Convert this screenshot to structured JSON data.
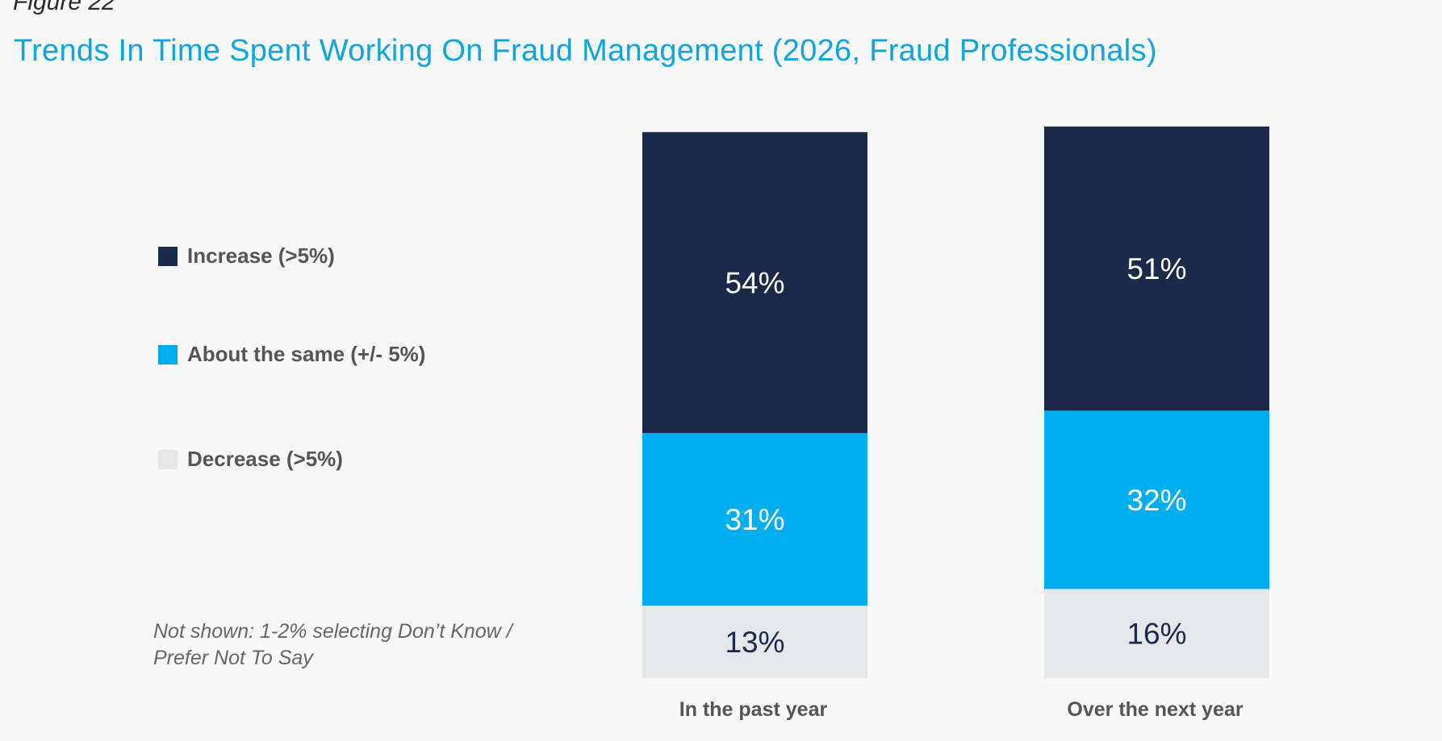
{
  "figure_label": "Figure 22",
  "note": "Not shown: 1-2% selecting Don’t Know / Prefer Not To Say",
  "colors": {
    "increase": "#1c2a4a",
    "same": "#00aeef",
    "decrease": "#e6e7e9",
    "label_light": "#ffffff",
    "label_dark": "#1c2a4a",
    "title": "#0ea5dc"
  },
  "chart_data": {
    "type": "bar",
    "stacked": true,
    "title": "Trends In Time Spent Working On Fraud Management (2026, Fraud Professionals)",
    "categories": [
      "In the past year",
      "Over the next year"
    ],
    "series": [
      {
        "name": "Decrease (>5%)",
        "values": [
          13,
          16
        ],
        "labels": [
          "13%",
          "16%"
        ]
      },
      {
        "name": "About the same (+/- 5%)",
        "values": [
          31,
          32
        ],
        "labels": [
          "31%",
          "32%"
        ]
      },
      {
        "name": "Increase (>5%)",
        "values": [
          54,
          51
        ],
        "labels": [
          "54%",
          "51%"
        ]
      }
    ],
    "legend": [
      "Increase (>5%)",
      "About the same (+/- 5%)",
      "Decrease (>5%)"
    ],
    "legend_position": "left",
    "ylim": [
      0,
      100
    ],
    "grid": false
  }
}
